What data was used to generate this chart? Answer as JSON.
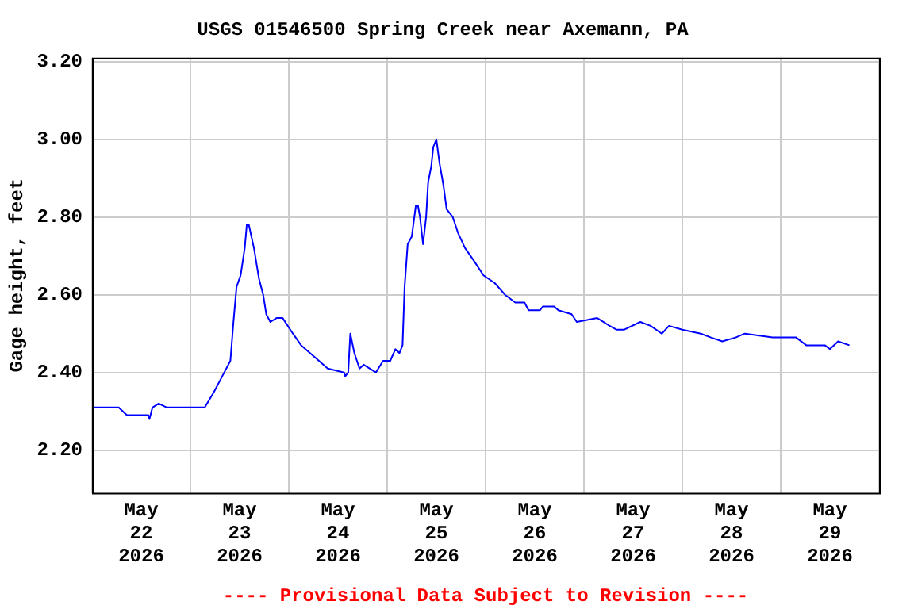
{
  "chart_data": {
    "type": "line",
    "title": "USGS 01546500 Spring Creek near Axemann, PA",
    "ylabel": "Gage height, feet",
    "annotations": [
      "---- Provisional Data Subject to Revision ----"
    ],
    "x": [
      "2026-05-22T00:00",
      "2026-05-22T06:30",
      "2026-05-22T08:30",
      "2026-05-22T13:45",
      "2026-05-22T14:00",
      "2026-05-22T14:45",
      "2026-05-22T16:15",
      "2026-05-22T18:15",
      "2026-05-23T03:30",
      "2026-05-23T05:45",
      "2026-05-23T07:45",
      "2026-05-23T09:45",
      "2026-05-23T10:30",
      "2026-05-23T11:15",
      "2026-05-23T12:15",
      "2026-05-23T13:15",
      "2026-05-23T13:45",
      "2026-05-23T14:15",
      "2026-05-23T15:30",
      "2026-05-23T16:45",
      "2026-05-23T17:45",
      "2026-05-23T18:30",
      "2026-05-23T19:30",
      "2026-05-23T21:00",
      "2026-05-23T22:30",
      "2026-05-24T01:00",
      "2026-05-24T03:00",
      "2026-05-24T06:15",
      "2026-05-24T09:30",
      "2026-05-24T13:30",
      "2026-05-24T13:45",
      "2026-05-24T14:30",
      "2026-05-24T15:00",
      "2026-05-24T16:00",
      "2026-05-24T17:15",
      "2026-05-24T18:15",
      "2026-05-24T21:15",
      "2026-05-24T23:00",
      "2026-05-25T00:45",
      "2026-05-25T02:00",
      "2026-05-25T03:00",
      "2026-05-25T03:45",
      "2026-05-25T04:15",
      "2026-05-25T05:00",
      "2026-05-25T06:00",
      "2026-05-25T07:00",
      "2026-05-25T07:30",
      "2026-05-25T08:00",
      "2026-05-25T08:45",
      "2026-05-25T09:30",
      "2026-05-25T10:00",
      "2026-05-25T10:45",
      "2026-05-25T11:15",
      "2026-05-25T12:00",
      "2026-05-25T12:45",
      "2026-05-25T13:45",
      "2026-05-25T14:30",
      "2026-05-25T16:00",
      "2026-05-25T17:15",
      "2026-05-25T19:00",
      "2026-05-25T21:00",
      "2026-05-25T23:30",
      "2026-05-26T02:15",
      "2026-05-26T04:45",
      "2026-05-26T07:15",
      "2026-05-26T09:30",
      "2026-05-26T10:30",
      "2026-05-26T13:15",
      "2026-05-26T14:00",
      "2026-05-26T16:45",
      "2026-05-26T17:45",
      "2026-05-26T21:00",
      "2026-05-26T22:15",
      "2026-05-27T03:15",
      "2026-05-27T06:15",
      "2026-05-27T08:00",
      "2026-05-27T09:45",
      "2026-05-27T13:45",
      "2026-05-27T16:15",
      "2026-05-27T19:00",
      "2026-05-27T20:45",
      "2026-05-28T00:00",
      "2026-05-28T04:30",
      "2026-05-28T07:00",
      "2026-05-28T09:45",
      "2026-05-28T13:00",
      "2026-05-28T15:15",
      "2026-05-28T22:00",
      "2026-05-29T03:45",
      "2026-05-29T06:15",
      "2026-05-29T10:45",
      "2026-05-29T12:00",
      "2026-05-29T14:00",
      "2026-05-29T16:45"
    ],
    "series": [
      {
        "color": "#0000ff",
        "values": [
          2.31,
          2.31,
          2.29,
          2.29,
          2.28,
          2.31,
          2.32,
          2.31,
          2.31,
          2.35,
          2.39,
          2.43,
          2.53,
          2.62,
          2.65,
          2.72,
          2.78,
          2.78,
          2.72,
          2.64,
          2.6,
          2.55,
          2.53,
          2.54,
          2.54,
          2.5,
          2.47,
          2.44,
          2.41,
          2.4,
          2.39,
          2.4,
          2.5,
          2.45,
          2.41,
          2.42,
          2.4,
          2.43,
          2.43,
          2.46,
          2.45,
          2.47,
          2.62,
          2.73,
          2.75,
          2.83,
          2.83,
          2.8,
          2.73,
          2.8,
          2.89,
          2.93,
          2.98,
          3.0,
          2.94,
          2.88,
          2.82,
          2.8,
          2.76,
          2.72,
          2.69,
          2.65,
          2.63,
          2.6,
          2.58,
          2.58,
          2.56,
          2.56,
          2.57,
          2.57,
          2.56,
          2.55,
          2.53,
          2.54,
          2.52,
          2.51,
          2.51,
          2.53,
          2.52,
          2.5,
          2.52,
          2.51,
          2.5,
          2.49,
          2.48,
          2.49,
          2.5,
          2.49,
          2.49,
          2.47,
          2.47,
          2.46,
          2.48,
          2.47
        ]
      }
    ],
    "xlim": [
      "2026-05-22T00:00",
      "2026-05-30T00:00"
    ],
    "xticks": [
      {
        "value": "2026-05-22T00:00",
        "label": null
      },
      {
        "value": "2026-05-22T12:00",
        "label": "May\n22\n2026"
      },
      {
        "value": "2026-05-23T00:00",
        "label": null
      },
      {
        "value": "2026-05-23T12:00",
        "label": "May\n23\n2026"
      },
      {
        "value": "2026-05-24T00:00",
        "label": null
      },
      {
        "value": "2026-05-24T12:00",
        "label": "May\n24\n2026"
      },
      {
        "value": "2026-05-25T00:00",
        "label": null
      },
      {
        "value": "2026-05-25T12:00",
        "label": "May\n25\n2026"
      },
      {
        "value": "2026-05-26T00:00",
        "label": null
      },
      {
        "value": "2026-05-26T12:00",
        "label": "May\n26\n2026"
      },
      {
        "value": "2026-05-27T00:00",
        "label": null
      },
      {
        "value": "2026-05-27T12:00",
        "label": "May\n27\n2026"
      },
      {
        "value": "2026-05-28T00:00",
        "label": null
      },
      {
        "value": "2026-05-28T12:00",
        "label": "May\n28\n2026"
      },
      {
        "value": "2026-05-29T00:00",
        "label": null
      },
      {
        "value": "2026-05-29T12:00",
        "label": "May\n29\n2026"
      },
      {
        "value": "2026-05-30T00:00",
        "label": null
      }
    ],
    "ylim": [
      2.09,
      3.21
    ],
    "yticks": [
      {
        "value": 2.2,
        "label": "2.20"
      },
      {
        "value": 2.4,
        "label": "2.40"
      },
      {
        "value": 2.6,
        "label": "2.60"
      },
      {
        "value": 2.8,
        "label": "2.80"
      },
      {
        "value": 3.0,
        "label": "3.00"
      },
      {
        "value": 3.2,
        "label": "3.20"
      }
    ],
    "grid": true,
    "legend": false,
    "marker": "none",
    "line_style": "solid"
  }
}
